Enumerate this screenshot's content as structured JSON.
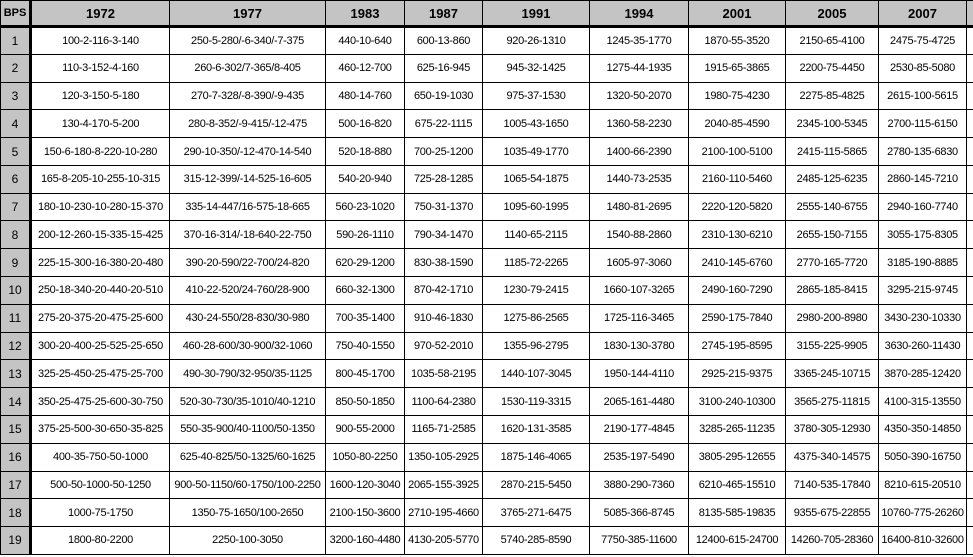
{
  "colors": {
    "header_bg": "#c4c4c4",
    "grid": "#000000",
    "cell_bg": "#ffffff",
    "text": "#000000"
  },
  "table": {
    "columns": [
      "BPS",
      "1972",
      "1977",
      "1983",
      "1987",
      "1991",
      "1994",
      "2001",
      "2005",
      "2007"
    ],
    "rows": [
      {
        "bps": "1",
        "cells": [
          "100-2-116-3-140",
          "250-5-280/-6-340/-7-375",
          "440-10-640",
          "600-13-860",
          "920-26-1310",
          "1245-35-1770",
          "1870-55-3520",
          "2150-65-4100",
          "2475-75-4725"
        ]
      },
      {
        "bps": "2",
        "cells": [
          "110-3-152-4-160",
          "260-6-302/7-365/8-405",
          "460-12-700",
          "625-16-945",
          "945-32-1425",
          "1275-44-1935",
          "1915-65-3865",
          "2200-75-4450",
          "2530-85-5080"
        ]
      },
      {
        "bps": "3",
        "cells": [
          "120-3-150-5-180",
          "270-7-328/-8-390/-9-435",
          "480-14-760",
          "650-19-1030",
          "975-37-1530",
          "1320-50-2070",
          "1980-75-4230",
          "2275-85-4825",
          "2615-100-5615"
        ]
      },
      {
        "bps": "4",
        "cells": [
          "130-4-170-5-200",
          "280-8-352/-9-415/-12-475",
          "500-16-820",
          "675-22-1115",
          "1005-43-1650",
          "1360-58-2230",
          "2040-85-4590",
          "2345-100-5345",
          "2700-115-6150"
        ]
      },
      {
        "bps": "5",
        "cells": [
          "150-6-180-8-220-10-280",
          "290-10-350/-12-470-14-540",
          "520-18-880",
          "700-25-1200",
          "1035-49-1770",
          "1400-66-2390",
          "2100-100-5100",
          "2415-115-5865",
          "2780-135-6830"
        ]
      },
      {
        "bps": "6",
        "cells": [
          "165-8-205-10-255-10-315",
          "315-12-399/-14-525-16-605",
          "540-20-940",
          "725-28-1285",
          "1065-54-1875",
          "1440-73-2535",
          "2160-110-5460",
          "2485-125-6235",
          "2860-145-7210"
        ]
      },
      {
        "bps": "7",
        "cells": [
          "180-10-230-10-280-15-370",
          "335-14-447/16-575-18-665",
          "560-23-1020",
          "750-31-1370",
          "1095-60-1995",
          "1480-81-2695",
          "2220-120-5820",
          "2555-140-6755",
          "2940-160-7740"
        ]
      },
      {
        "bps": "8",
        "cells": [
          "200-12-260-15-335-15-425",
          "370-16-314/-18-640-22-750",
          "590-26-1110",
          "790-34-1470",
          "1140-65-2115",
          "1540-88-2860",
          "2310-130-6210",
          "2655-150-7155",
          "3055-175-8305"
        ]
      },
      {
        "bps": "9",
        "cells": [
          "225-15-300-16-380-20-480",
          "390-20-590/22-700/24-820",
          "620-29-1200",
          "830-38-1590",
          "1185-72-2265",
          "1605-97-3060",
          "2410-145-6760",
          "2770-165-7720",
          "3185-190-8885"
        ]
      },
      {
        "bps": "10",
        "cells": [
          "250-18-340-20-440-20-510",
          "410-22-520/24-760/28-900",
          "660-32-1300",
          "870-42-1710",
          "1230-79-2415",
          "1660-107-3265",
          "2490-160-7290",
          "2865-185-8415",
          "3295-215-9745"
        ]
      },
      {
        "bps": "11",
        "cells": [
          "275-20-375-20-475-25-600",
          "430-24-550/28-830/30-980",
          "700-35-1400",
          "910-46-1830",
          "1275-86-2565",
          "1725-116-3465",
          "2590-175-7840",
          "2980-200-8980",
          "3430-230-10330"
        ]
      },
      {
        "bps": "12",
        "cells": [
          "300-20-400-25-525-25-650",
          "460-28-600/30-900/32-1060",
          "750-40-1550",
          "970-52-2010",
          "1355-96-2795",
          "1830-130-3780",
          "2745-195-8595",
          "3155-225-9905",
          "3630-260-11430"
        ]
      },
      {
        "bps": "13",
        "cells": [
          "325-25-450-25-475-25-700",
          "490-30-790/32-950/35-1125",
          "800-45-1700",
          "1035-58-2195",
          "1440-107-3045",
          "1950-144-4110",
          "2925-215-9375",
          "3365-245-10715",
          "3870-285-12420"
        ]
      },
      {
        "bps": "14",
        "cells": [
          "350-25-475-25-600-30-750",
          "520-30-730/35-1010/40-1210",
          "850-50-1850",
          "1100-64-2380",
          "1530-119-3315",
          "2065-161-4480",
          "3100-240-10300",
          "3565-275-11815",
          "4100-315-13550"
        ]
      },
      {
        "bps": "15",
        "cells": [
          "375-25-500-30-650-35-825",
          "550-35-900/40-1100/50-1350",
          "900-55-2000",
          "1165-71-2585",
          "1620-131-3585",
          "2190-177-4845",
          "3285-265-11235",
          "3780-305-12930",
          "4350-350-14850"
        ]
      },
      {
        "bps": "16",
        "cells": [
          "400-35-750-50-1000",
          "625-40-825/50-1325/60-1625",
          "1050-80-2250",
          "1350-105-2925",
          "1875-146-4065",
          "2535-197-5490",
          "3805-295-12655",
          "4375-340-14575",
          "5050-390-16750"
        ]
      },
      {
        "bps": "17",
        "cells": [
          "500-50-1000-50-1250",
          "900-50-1150/60-1750/100-2250",
          "1600-120-3040",
          "2065-155-3925",
          "2870-215-5450",
          "3880-290-7360",
          "6210-465-15510",
          "7140-535-17840",
          "8210-615-20510"
        ]
      },
      {
        "bps": "18",
        "cells": [
          "1000-75-1750",
          "1350-75-1650/100-2650",
          "2100-150-3600",
          "2710-195-4660",
          "3765-271-6475",
          "5085-366-8745",
          "8135-585-19835",
          "9355-675-22855",
          "10760-775-26260"
        ]
      },
      {
        "bps": "19",
        "cells": [
          "1800-80-2200",
          "2250-100-3050",
          "3200-160-4480",
          "4130-205-5770",
          "5740-285-8590",
          "7750-385-11600",
          "12400-615-24700",
          "14260-705-28360",
          "16400-810-32600"
        ]
      }
    ]
  }
}
